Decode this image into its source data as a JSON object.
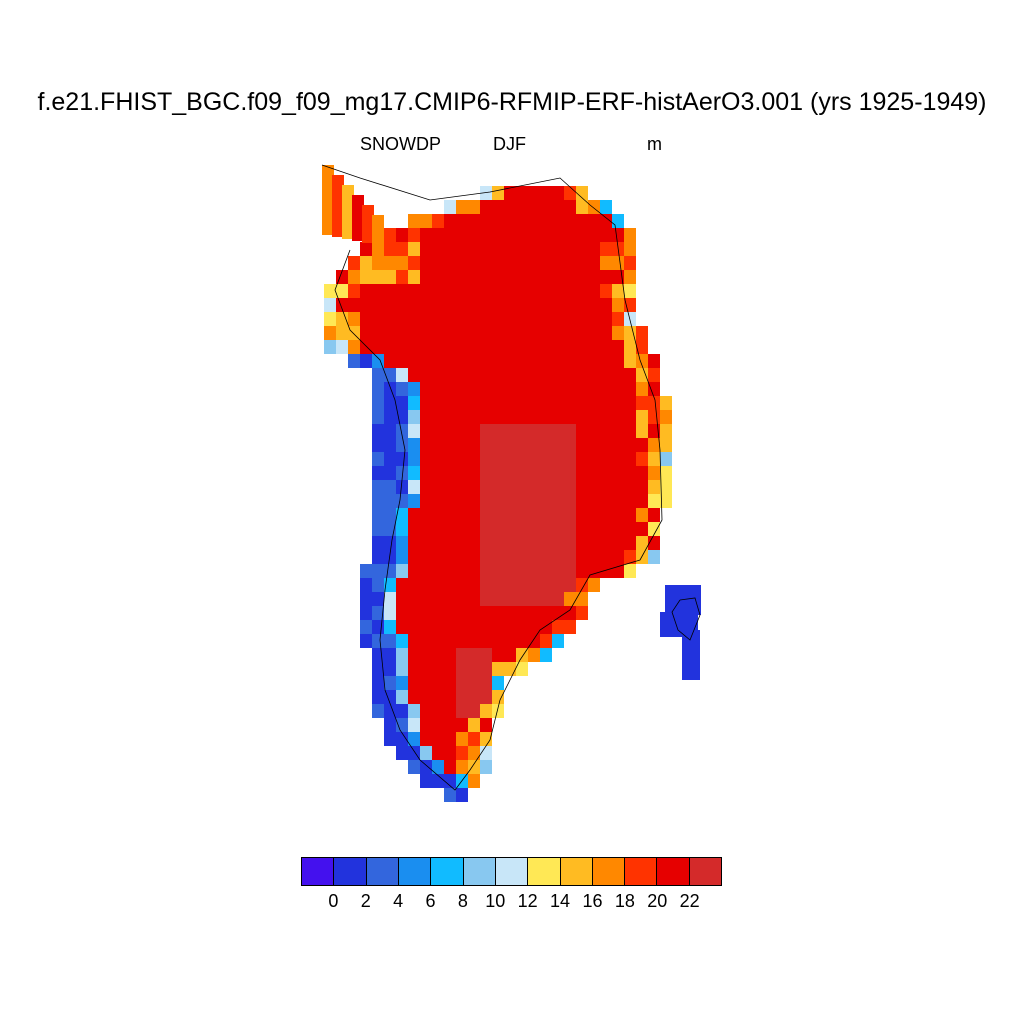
{
  "title": "f.e21.FHIST_BGC.f09_f09_mg17.CMIP6-RFMIP-ERF-histAerO3.001 (yrs 1925-1949)",
  "variable": "SNOWDP",
  "season": "DJF",
  "units": "m",
  "colorbar": {
    "colors": [
      "#4411ee",
      "#2233dd",
      "#3366dd",
      "#1a8ef0",
      "#11bbff",
      "#88c8f0",
      "#c8e6f8",
      "#ffe855",
      "#ffbb22",
      "#ff8800",
      "#ff3300",
      "#e60000",
      "#d42a2a"
    ],
    "labels": [
      "0",
      "2",
      "4",
      "6",
      "8",
      "10",
      "12",
      "14",
      "16",
      "18",
      "20",
      "22"
    ]
  },
  "map_data": {
    "type": "raster-map",
    "region": "Greenland",
    "value_classes": "colorbar index 0-12"
  }
}
